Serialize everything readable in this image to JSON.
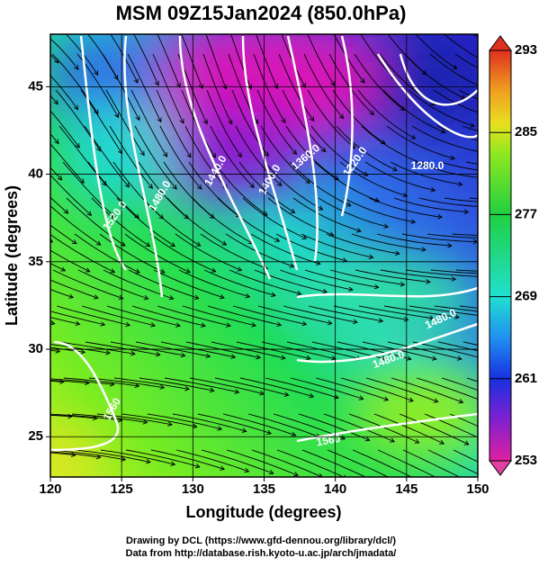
{
  "chart_data": {
    "type": "map",
    "title": "MSM 09Z15Jan2024 (850.0hPa)",
    "xlabel": "Longitude (degrees)",
    "ylabel": "Latitude  (degrees)",
    "xlim": [
      120,
      150
    ],
    "ylim": [
      22.7,
      48
    ],
    "xticks": [
      120,
      125,
      130,
      135,
      140,
      145,
      150
    ],
    "yticks": [
      25,
      30,
      35,
      40,
      45
    ],
    "grid": true,
    "colorbar": {
      "lim": [
        253,
        293
      ],
      "ticks": [
        253,
        261,
        269,
        277,
        285,
        293
      ]
    },
    "contour_labels": [
      "1220.0",
      "1280.0",
      "1360.0",
      "1400.0",
      "1440.0",
      "1480.0",
      "1520.0",
      "1480.0",
      "1480.0",
      "1560",
      "1560"
    ]
  },
  "footer": [
    "Drawing by DCL (https://www.gfd-dennou.org/library/dcl/)",
    "Data from http://database.rish.kyoto-u.ac.jp/arch/jmadata/"
  ]
}
